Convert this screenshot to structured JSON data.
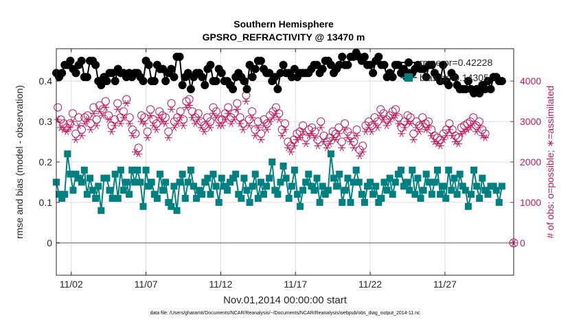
{
  "chart_data": {
    "type": "line",
    "title_line1": "Southern Hemisphere",
    "title_line2": "GPSRO_REFRACTIVITY @ 13470 m",
    "xlabel": "Nov.01,2014 00:00:00 start",
    "ylabel_left": "rmse and bias (model - observation)",
    "ylabel_right": "# of obs: o=possible; ∗=assimilated",
    "xlim": [
      1,
      31.6
    ],
    "ylim_left": [
      -0.08,
      0.48
    ],
    "ylim_right": [
      -800,
      4800
    ],
    "x_tick_values": [
      2,
      7,
      12,
      17,
      22,
      27
    ],
    "x_tick_labels": [
      "11/02",
      "11/07",
      "11/12",
      "11/17",
      "11/22",
      "11/27"
    ],
    "y_left_ticks": [
      0,
      0.1,
      0.2,
      0.3,
      0.4
    ],
    "y_left_tick_labels": [
      "0",
      "0.1",
      "0.2",
      "0.3",
      "0.4"
    ],
    "y_right_ticks": [
      0,
      1000,
      2000,
      3000,
      4000
    ],
    "y_right_tick_labels": [
      "0",
      "1000",
      "2000",
      "3000",
      "4000"
    ],
    "grid": true,
    "legend_position": "top-right",
    "colors": {
      "rmse": "#000000",
      "bias": "#008080",
      "obs": "#c2185b",
      "zero_line": "#a6a6a6",
      "grid": "#dcdcdc"
    },
    "footnote": "data file: /Users/gharamti/Documents/NCAR/Reanalysis/~/Documents/NCAR/Reanalysis/webpub/obs_diag_output_2014-11.nc",
    "series": [
      {
        "name": "rmse pr=0.42228",
        "axis": "left",
        "marker": "circle-filled",
        "values": [
          0.42,
          0.41,
          0.42,
          0.44,
          0.44,
          0.45,
          0.43,
          0.42,
          0.44,
          0.45,
          0.41,
          0.41,
          0.45,
          0.45,
          0.44,
          0.4,
          0.39,
          0.41,
          0.4,
          0.42,
          0.42,
          0.4,
          0.43,
          0.42,
          0.42,
          0.41,
          0.42,
          0.41,
          0.42,
          0.42,
          0.41,
          0.4,
          0.45,
          0.44,
          0.4,
          0.4,
          0.44,
          0.43,
          0.43,
          0.4,
          0.42,
          0.43,
          0.41,
          0.46,
          0.46,
          0.39,
          0.41,
          0.42,
          0.38,
          0.41,
          0.42,
          0.42,
          0.41,
          0.39,
          0.43,
          0.44,
          0.4,
          0.4,
          0.43,
          0.42,
          0.4,
          0.4,
          0.39,
          0.38,
          0.41,
          0.42,
          0.41,
          0.4,
          0.38,
          0.44,
          0.41,
          0.43,
          0.45,
          0.45,
          0.43,
          0.42,
          0.42,
          0.4,
          0.41,
          0.38,
          0.42,
          0.44,
          0.42,
          0.42,
          0.41,
          0.43,
          0.41,
          0.42,
          0.42,
          0.42,
          0.42,
          0.43,
          0.44,
          0.44,
          0.42,
          0.43,
          0.45,
          0.45,
          0.44,
          0.42,
          0.43,
          0.44,
          0.46,
          0.44,
          0.44,
          0.46,
          0.46,
          0.47,
          0.46,
          0.45,
          0.46,
          0.44,
          0.44,
          0.42,
          0.45,
          0.46,
          0.44,
          0.44,
          0.41,
          0.42,
          0.41,
          0.44,
          0.44,
          0.42,
          0.43,
          0.41,
          0.42,
          0.42,
          0.43,
          0.44,
          0.43,
          0.43,
          0.41,
          0.44,
          0.44,
          0.42,
          0.41,
          0.4,
          0.44,
          0.4,
          0.39,
          0.42,
          0.41,
          0.39,
          0.38,
          0.38,
          0.38,
          0.4,
          0.38,
          0.37,
          0.38,
          0.37,
          0.39,
          0.38,
          0.4,
          0.38,
          0.41,
          0.41,
          0.4,
          0.4
        ],
        "x_start": 1,
        "x_step": 0.1875
      },
      {
        "name": "bias pr=0.14305",
        "axis": "left",
        "marker": "square-filled",
        "values": [
          0.15,
          0.12,
          0.11,
          0.12,
          0.22,
          0.17,
          0.13,
          0.17,
          0.16,
          0.15,
          0.18,
          0.12,
          0.16,
          0.13,
          0.11,
          0.14,
          0.08,
          0.16,
          0.16,
          0.13,
          0.11,
          0.17,
          0.11,
          0.18,
          0.13,
          0.15,
          0.12,
          0.18,
          0.15,
          0.18,
          0.15,
          0.09,
          0.18,
          0.14,
          0.15,
          0.12,
          0.11,
          0.17,
          0.13,
          0.15,
          0.1,
          0.09,
          0.14,
          0.08,
          0.15,
          0.17,
          0.11,
          0.15,
          0.18,
          0.14,
          0.11,
          0.13,
          0.12,
          0.15,
          0.16,
          0.12,
          0.17,
          0.14,
          0.1,
          0.16,
          0.14,
          0.13,
          0.15,
          0.16,
          0.17,
          0.12,
          0.11,
          0.16,
          0.13,
          0.1,
          0.14,
          0.17,
          0.11,
          0.15,
          0.12,
          0.14,
          0.16,
          0.2,
          0.13,
          0.12,
          0.15,
          0.19,
          0.16,
          0.11,
          0.14,
          0.18,
          0.12,
          0.09,
          0.13,
          0.15,
          0.17,
          0.14,
          0.13,
          0.16,
          0.1,
          0.14,
          0.12,
          0.13,
          0.22,
          0.16,
          0.14,
          0.17,
          0.1,
          0.13,
          0.16,
          0.1,
          0.15,
          0.18,
          0.15,
          0.12,
          0.1,
          0.14,
          0.15,
          0.12,
          0.14,
          0.1,
          0.11,
          0.15,
          0.13,
          0.16,
          0.12,
          0.15,
          0.17,
          0.18,
          0.14,
          0.15,
          0.13,
          0.18,
          0.12,
          0.16,
          0.11,
          0.13,
          0.17,
          0.15,
          0.12,
          0.15,
          0.18,
          0.12,
          0.14,
          0.11,
          0.18,
          0.13,
          0.16,
          0.12,
          0.17,
          0.14,
          0.13,
          0.09,
          0.12,
          0.18,
          0.14,
          0.11,
          0.16,
          0.13,
          0.12,
          0.14,
          0.14,
          0.13,
          0.1,
          0.14
        ],
        "x_start": 1,
        "x_step": 0.1875
      },
      {
        "name": "possible",
        "axis": "right",
        "marker": "circle-open",
        "values": [
          3350,
          3050,
          2950,
          2850,
          2950,
          3200,
          2700,
          3100,
          2800,
          3100,
          3150,
          2950,
          3350,
          3050,
          3400,
          3300,
          3500,
          3150,
          2900,
          3050,
          3450,
          3100,
          3250,
          3550,
          3100,
          2800,
          2700,
          2350,
          3150,
          3100,
          2750,
          3300,
          3050,
          2950,
          3250,
          3150,
          3100,
          2750,
          3450,
          3000,
          3100,
          3250,
          3050,
          3500,
          3550,
          3250,
          3100,
          3200,
          3000,
          2900,
          3100,
          3000,
          3350,
          3250,
          3050,
          3050,
          3200,
          3350,
          3100,
          3200,
          3450,
          3100,
          2950,
          3650,
          3050,
          3250,
          2800,
          3000,
          2700,
          3050,
          2950,
          3150,
          3250,
          3350,
          3200,
          2800,
          2950,
          2500,
          2400,
          2550,
          2700,
          2750,
          2900,
          2600,
          2800,
          2850,
          2750,
          2550,
          3000,
          2650,
          2500,
          2600,
          2750,
          2700,
          2850,
          2500,
          2950,
          2750,
          2650,
          2500,
          2800,
          2300,
          2400,
          2900,
          3000,
          2900,
          3100,
          3000,
          3300,
          3200,
          3050,
          3150,
          3250,
          3300,
          3100,
          2850,
          3000,
          3150,
          3100,
          2700,
          3000,
          2900,
          3100,
          2950,
          3000,
          2800,
          2650,
          2600,
          2550,
          2700,
          2800,
          2950,
          2800,
          2650,
          2600,
          2850,
          2900,
          2950,
          3000,
          3100,
          2900,
          3000,
          2800,
          2700
        ],
        "x_start": 1.1,
        "x_step": 0.2
      },
      {
        "name": "assimilated",
        "axis": "right",
        "marker": "star",
        "values": [
          3050,
          2850,
          2800,
          2750,
          2850,
          3000,
          2550,
          2900,
          2650,
          2950,
          3050,
          2800,
          3200,
          2900,
          3250,
          3150,
          3350,
          3050,
          2750,
          2900,
          3300,
          2950,
          3100,
          3450,
          2950,
          2650,
          2250,
          2200,
          3000,
          2950,
          2600,
          3150,
          2900,
          2800,
          3100,
          3000,
          2950,
          2600,
          3300,
          2850,
          2950,
          3100,
          2900,
          3350,
          3400,
          3100,
          2950,
          3050,
          2850,
          2750,
          2950,
          2850,
          3200,
          3100,
          2900,
          2900,
          3050,
          3200,
          2950,
          3050,
          3300,
          2950,
          2800,
          3500,
          2900,
          3100,
          2650,
          2850,
          2550,
          2900,
          2800,
          3000,
          3100,
          3200,
          3050,
          2650,
          2800,
          2350,
          2250,
          2400,
          2550,
          2600,
          2750,
          2450,
          2650,
          2700,
          2600,
          2400,
          2850,
          2500,
          2350,
          2450,
          2600,
          2550,
          2700,
          2350,
          2800,
          2600,
          2500,
          2350,
          2650,
          2150,
          2250,
          2750,
          2850,
          2750,
          2950,
          2850,
          3150,
          3050,
          2900,
          3000,
          3100,
          3150,
          2950,
          2700,
          2850,
          3000,
          2950,
          2550,
          2850,
          2750,
          2950,
          2800,
          2850,
          2650,
          2500,
          2450,
          2400,
          2550,
          2650,
          2800,
          2650,
          2500,
          2450,
          2700,
          2750,
          2800,
          2850,
          2950,
          2750,
          2850,
          2650,
          2600
        ],
        "x_start": 1.1,
        "x_step": 0.2
      }
    ],
    "endpoint_marker": {
      "x": 31.6,
      "value": 0,
      "axis": "right"
    }
  }
}
